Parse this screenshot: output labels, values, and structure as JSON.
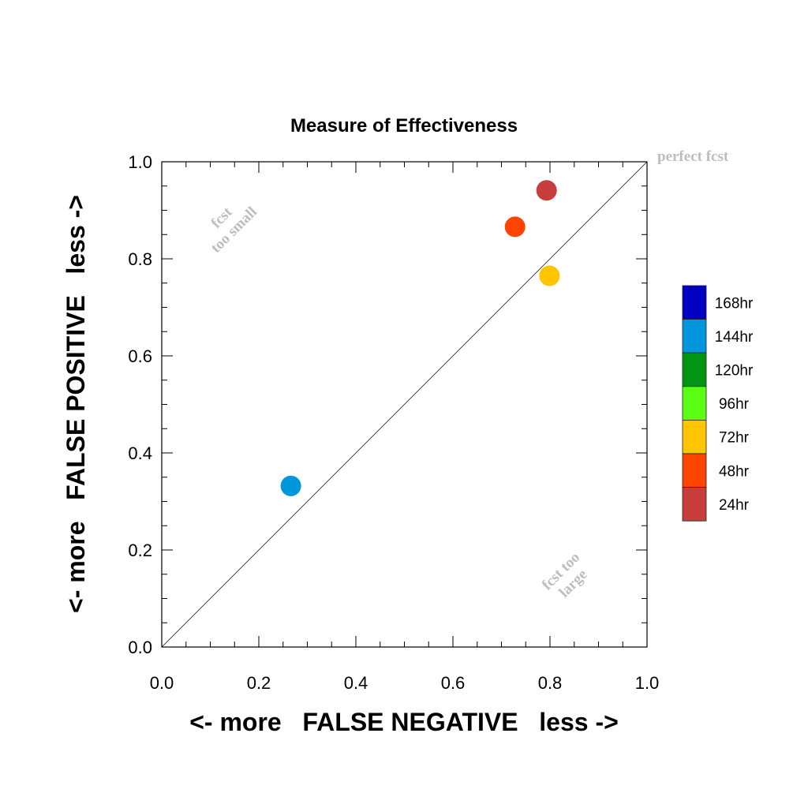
{
  "chart_data": {
    "type": "scatter",
    "title": "Measure of Effectiveness",
    "xlabel": "<- more   FALSE NEGATIVE   less ->",
    "ylabel": "<- more   FALSE POSITIVE   less ->",
    "xlim": [
      0,
      1
    ],
    "ylim": [
      0,
      1
    ],
    "x_ticks": [
      "0.0",
      "0.2",
      "0.4",
      "0.6",
      "0.8",
      "1.0"
    ],
    "y_ticks": [
      "0.0",
      "0.2",
      "0.4",
      "0.6",
      "0.8",
      "1.0"
    ],
    "grid": false,
    "diagonal_line": true,
    "legend_placement": "right",
    "annotations": {
      "top_right": "perfect fcst",
      "upper_left": [
        "fcst",
        "too small"
      ],
      "lower_right": [
        "fcst too",
        "large"
      ]
    },
    "legend": [
      {
        "label": "168hr",
        "color": "#0000c4"
      },
      {
        "label": "144hr",
        "color": "#0096dc"
      },
      {
        "label": "120hr",
        "color": "#009614"
      },
      {
        "label": "96hr",
        "color": "#5aff14"
      },
      {
        "label": "72hr",
        "color": "#ffc400"
      },
      {
        "label": "48hr",
        "color": "#ff4400"
      },
      {
        "label": "24hr",
        "color": "#c83c3c"
      }
    ],
    "points": [
      {
        "series": "144hr",
        "x": 0.266,
        "y": 0.332,
        "color": "#0096dc"
      },
      {
        "series": "72hr",
        "x": 0.799,
        "y": 0.765,
        "color": "#ffc400"
      },
      {
        "series": "48hr",
        "x": 0.728,
        "y": 0.866,
        "color": "#ff4400"
      },
      {
        "series": "24hr",
        "x": 0.793,
        "y": 0.941,
        "color": "#c83c3c"
      }
    ]
  }
}
